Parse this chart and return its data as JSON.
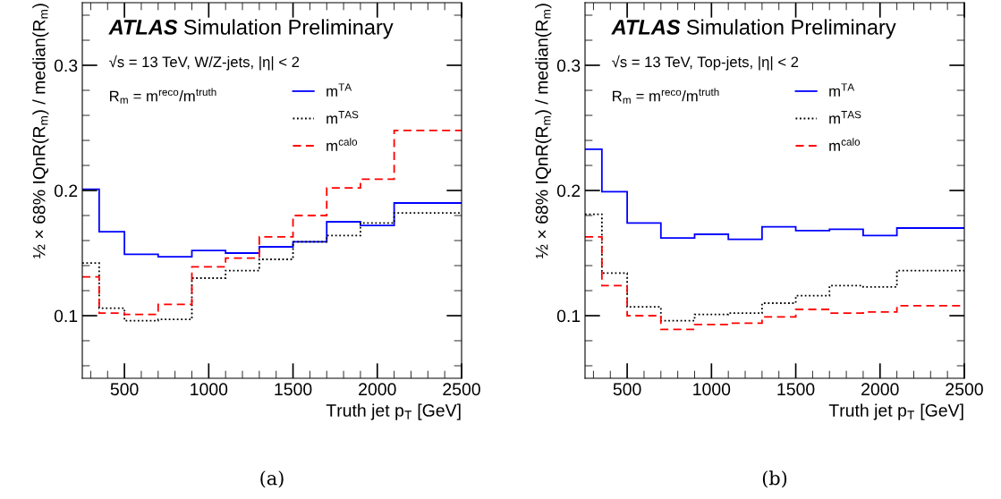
{
  "chart_data": [
    {
      "type": "histogram",
      "ylabel": "½ × 68% IQnR(R$_{m}$) / median(R$_{m}$)",
      "xlabel": "Truth jet p$_{T}$ [GeV]",
      "annotations": [
        "ATLAS",
        "Simulation Preliminary",
        "√s = 13 TeV, W/Z-jets, |η| < 2",
        "R$_{m}$ = m$^{reco}$/m$^{truth}$",
        "(a)"
      ],
      "bins": [
        250,
        350,
        500,
        700,
        900,
        1100,
        1300,
        1500,
        1700,
        1900,
        2100,
        2500
      ],
      "series": [
        {
          "name": "m$^{TA}$",
          "color": "#0000ff",
          "line_style": "solid",
          "values": [
            0.201,
            0.167,
            0.149,
            0.147,
            0.152,
            0.15,
            0.155,
            0.159,
            0.175,
            0.172,
            0.19
          ]
        },
        {
          "name": "m$^{TAS}$",
          "color": "#000000",
          "line_style": "dotted",
          "values": [
            0.142,
            0.106,
            0.096,
            0.097,
            0.13,
            0.136,
            0.145,
            0.159,
            0.164,
            0.174,
            0.182
          ]
        },
        {
          "name": "m$^{calo}$",
          "color": "#ff0000",
          "line_style": "dashed",
          "values": [
            0.131,
            0.102,
            0.101,
            0.109,
            0.139,
            0.146,
            0.163,
            0.18,
            0.202,
            0.209,
            0.248
          ]
        }
      ],
      "xlim": [
        250,
        2500
      ],
      "ylim": [
        0.05,
        0.35
      ],
      "xticks": [
        {
          "value": 300,
          "label": null
        },
        {
          "value": 400,
          "label": null
        },
        500,
        {
          "value": 600,
          "label": null
        },
        {
          "value": 700,
          "label": null
        },
        {
          "value": 800,
          "label": null
        },
        {
          "value": 900,
          "label": null
        },
        1000,
        {
          "value": 1100,
          "label": null
        },
        {
          "value": 1200,
          "label": null
        },
        {
          "value": 1300,
          "label": null
        },
        {
          "value": 1400,
          "label": null
        },
        1500,
        {
          "value": 1600,
          "label": null
        },
        {
          "value": 1700,
          "label": null
        },
        {
          "value": 1800,
          "label": null
        },
        {
          "value": 1900,
          "label": null
        },
        2000,
        {
          "value": 2100,
          "label": null
        },
        {
          "value": 2200,
          "label": null
        },
        {
          "value": 2300,
          "label": null
        },
        {
          "value": 2400,
          "label": null
        },
        2500
      ],
      "yticks": [
        {
          "value": 0.06,
          "label": null
        },
        {
          "value": 0.08,
          "label": null
        },
        0.1,
        {
          "value": 0.12,
          "label": null
        },
        {
          "value": 0.14,
          "label": null
        },
        {
          "value": 0.16,
          "label": null
        },
        {
          "value": 0.18,
          "label": null
        },
        0.2,
        {
          "value": 0.22,
          "label": null
        },
        {
          "value": 0.24,
          "label": null
        },
        {
          "value": 0.26,
          "label": null
        },
        {
          "value": 0.28,
          "label": null
        },
        0.3,
        {
          "value": 0.32,
          "label": null
        },
        {
          "value": 0.34,
          "label": null
        }
      ],
      "legend": "top right",
      "grid": false
    },
    {
      "type": "histogram",
      "ylabel": "½ × 68% IQnR(R$_{m}$) / median(R$_{m}$)",
      "xlabel": "Truth jet p$_{T}$ [GeV]",
      "annotations": [
        "ATLAS",
        "Simulation Preliminary",
        "√s = 13 TeV, Top-jets, |η| < 2",
        "R$_{m}$ = m$^{reco}$/m$^{truth}$",
        "(b)"
      ],
      "bins": [
        250,
        350,
        500,
        700,
        900,
        1100,
        1300,
        1500,
        1700,
        1900,
        2100,
        2500
      ],
      "series": [
        {
          "name": "m$^{TA}$",
          "color": "#0000ff",
          "line_style": "solid",
          "values": [
            0.233,
            0.199,
            0.174,
            0.162,
            0.165,
            0.161,
            0.171,
            0.168,
            0.169,
            0.164,
            0.17
          ]
        },
        {
          "name": "m$^{TAS}$",
          "color": "#000000",
          "line_style": "dotted",
          "values": [
            0.181,
            0.134,
            0.107,
            0.096,
            0.101,
            0.102,
            0.11,
            0.116,
            0.124,
            0.123,
            0.136
          ]
        },
        {
          "name": "m$^{calo}$",
          "color": "#ff0000",
          "line_style": "dashed",
          "values": [
            0.163,
            0.124,
            0.1,
            0.089,
            0.093,
            0.094,
            0.099,
            0.105,
            0.102,
            0.103,
            0.108
          ]
        }
      ],
      "xlim": [
        250,
        2500
      ],
      "ylim": [
        0.05,
        0.35
      ],
      "xticks": [
        {
          "value": 300,
          "label": null
        },
        {
          "value": 400,
          "label": null
        },
        500,
        {
          "value": 600,
          "label": null
        },
        {
          "value": 700,
          "label": null
        },
        {
          "value": 800,
          "label": null
        },
        {
          "value": 900,
          "label": null
        },
        1000,
        {
          "value": 1100,
          "label": null
        },
        {
          "value": 1200,
          "label": null
        },
        {
          "value": 1300,
          "label": null
        },
        {
          "value": 1400,
          "label": null
        },
        1500,
        {
          "value": 1600,
          "label": null
        },
        {
          "value": 1700,
          "label": null
        },
        {
          "value": 1800,
          "label": null
        },
        {
          "value": 1900,
          "label": null
        },
        2000,
        {
          "value": 2100,
          "label": null
        },
        {
          "value": 2200,
          "label": null
        },
        {
          "value": 2300,
          "label": null
        },
        {
          "value": 2400,
          "label": null
        },
        2500
      ],
      "yticks": [
        {
          "value": 0.06,
          "label": null
        },
        {
          "value": 0.08,
          "label": null
        },
        0.1,
        {
          "value": 0.12,
          "label": null
        },
        {
          "value": 0.14,
          "label": null
        },
        {
          "value": 0.16,
          "label": null
        },
        {
          "value": 0.18,
          "label": null
        },
        0.2,
        {
          "value": 0.22,
          "label": null
        },
        {
          "value": 0.24,
          "label": null
        },
        {
          "value": 0.26,
          "label": null
        },
        {
          "value": 0.28,
          "label": null
        },
        0.3,
        {
          "value": 0.32,
          "label": null
        },
        {
          "value": 0.34,
          "label": null
        }
      ],
      "legend": "top right",
      "grid": false
    }
  ]
}
